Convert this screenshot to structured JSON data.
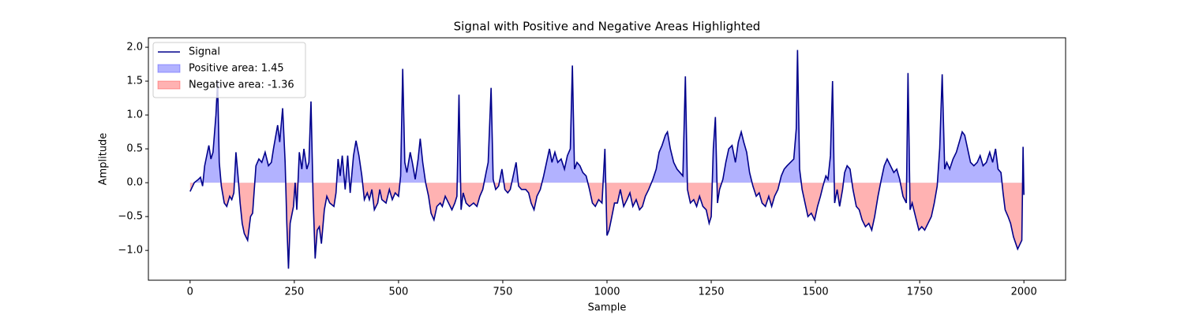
{
  "chart_data": {
    "type": "line",
    "title": "Signal with Positive and Negative Areas Highlighted",
    "x_label": "Sample",
    "y_label": "Amplitude",
    "x": [
      0,
      10,
      20,
      25,
      30,
      35,
      45,
      50,
      55,
      62,
      66,
      70,
      75,
      82,
      88,
      95,
      100,
      105,
      110,
      115,
      120,
      125,
      130,
      138,
      145,
      150,
      158,
      165,
      172,
      180,
      188,
      195,
      200,
      210,
      215,
      222,
      228,
      232,
      236,
      240,
      248,
      252,
      256,
      262,
      268,
      273,
      280,
      285,
      290,
      295,
      300,
      305,
      310,
      315,
      322,
      328,
      335,
      345,
      350,
      355,
      360,
      365,
      372,
      378,
      384,
      392,
      398,
      405,
      412,
      418,
      425,
      430,
      436,
      442,
      450,
      455,
      460,
      470,
      478,
      485,
      492,
      500,
      505,
      510,
      515,
      520,
      528,
      533,
      540,
      547,
      552,
      558,
      565,
      572,
      578,
      585,
      592,
      600,
      605,
      612,
      620,
      628,
      635,
      640,
      645,
      650,
      655,
      662,
      670,
      680,
      688,
      695,
      702,
      710,
      715,
      722,
      727,
      733,
      740,
      748,
      755,
      762,
      768,
      775,
      782,
      788,
      795,
      805,
      812,
      818,
      825,
      832,
      840,
      848,
      855,
      862,
      868,
      875,
      882,
      890,
      898,
      905,
      912,
      917,
      922,
      928,
      935,
      942,
      950,
      958,
      965,
      972,
      980,
      988,
      995,
      1000,
      1005,
      1010,
      1018,
      1025,
      1032,
      1040,
      1048,
      1055,
      1062,
      1070,
      1078,
      1085,
      1092,
      1100,
      1110,
      1118,
      1125,
      1132,
      1140,
      1145,
      1152,
      1160,
      1168,
      1175,
      1182,
      1188,
      1193,
      1200,
      1208,
      1215,
      1222,
      1230,
      1238,
      1245,
      1250,
      1255,
      1260,
      1265,
      1270,
      1278,
      1285,
      1292,
      1300,
      1308,
      1315,
      1322,
      1328,
      1335,
      1342,
      1350,
      1358,
      1365,
      1372,
      1380,
      1388,
      1395,
      1402,
      1410,
      1418,
      1425,
      1432,
      1440,
      1448,
      1454,
      1457,
      1462,
      1468,
      1475,
      1482,
      1490,
      1498,
      1505,
      1512,
      1518,
      1525,
      1530,
      1536,
      1541,
      1546,
      1552,
      1558,
      1565,
      1570,
      1576,
      1583,
      1590,
      1598,
      1605,
      1612,
      1620,
      1628,
      1635,
      1642,
      1650,
      1658,
      1665,
      1672,
      1680,
      1688,
      1695,
      1702,
      1710,
      1718,
      1722,
      1727,
      1732,
      1740,
      1748,
      1755,
      1762,
      1770,
      1778,
      1785,
      1792,
      1798,
      1804,
      1810,
      1815,
      1822,
      1830,
      1838,
      1845,
      1852,
      1858,
      1865,
      1872,
      1880,
      1888,
      1895,
      1902,
      1910,
      1918,
      1925,
      1932,
      1938,
      1945,
      1950,
      1955,
      1962,
      1968,
      1975,
      1985,
      1995,
      1998,
      2000
    ],
    "series": [
      {
        "name": "Signal",
        "color": "#00008b",
        "values": [
          -0.13,
          0.0,
          0.05,
          0.08,
          -0.05,
          0.25,
          0.55,
          0.35,
          0.45,
          1.0,
          1.5,
          0.3,
          -0.05,
          -0.3,
          -0.35,
          -0.2,
          -0.25,
          -0.15,
          0.45,
          0.1,
          -0.3,
          -0.6,
          -0.75,
          -0.85,
          -0.5,
          -0.45,
          0.25,
          0.35,
          0.3,
          0.45,
          0.25,
          0.3,
          0.5,
          0.85,
          0.6,
          1.1,
          0.3,
          -0.6,
          -1.27,
          -0.6,
          -0.35,
          0.0,
          -0.4,
          0.45,
          0.2,
          0.5,
          0.2,
          0.3,
          1.2,
          -0.2,
          -1.12,
          -0.7,
          -0.65,
          -0.9,
          -0.4,
          -0.2,
          -0.3,
          -0.35,
          -0.15,
          0.35,
          0.1,
          0.4,
          -0.1,
          0.4,
          -0.15,
          0.4,
          0.62,
          0.4,
          0.1,
          -0.25,
          -0.15,
          -0.25,
          -0.1,
          -0.4,
          -0.3,
          -0.1,
          -0.25,
          -0.3,
          -0.1,
          -0.25,
          -0.15,
          -0.2,
          0.1,
          1.68,
          0.3,
          0.15,
          0.45,
          0.3,
          0.05,
          0.35,
          0.65,
          0.3,
          0.0,
          -0.2,
          -0.45,
          -0.55,
          -0.35,
          -0.3,
          -0.35,
          -0.2,
          -0.3,
          -0.4,
          -0.3,
          -0.2,
          1.3,
          -0.4,
          -0.15,
          -0.3,
          -0.35,
          -0.3,
          -0.35,
          -0.2,
          -0.1,
          0.15,
          0.3,
          1.4,
          0.05,
          -0.1,
          -0.05,
          0.2,
          -0.1,
          -0.15,
          -0.1,
          0.1,
          0.3,
          -0.05,
          -0.1,
          -0.1,
          -0.15,
          -0.3,
          -0.4,
          -0.2,
          -0.1,
          0.1,
          0.3,
          0.5,
          0.3,
          0.45,
          0.3,
          0.35,
          0.2,
          0.4,
          0.5,
          1.73,
          0.2,
          0.3,
          0.25,
          0.15,
          0.1,
          -0.1,
          -0.3,
          -0.35,
          -0.25,
          -0.3,
          0.5,
          -0.78,
          -0.7,
          -0.55,
          -0.3,
          -0.3,
          -0.1,
          -0.35,
          -0.25,
          -0.15,
          -0.35,
          -0.25,
          -0.4,
          -0.35,
          -0.2,
          -0.1,
          0.05,
          0.2,
          0.45,
          0.55,
          0.7,
          0.75,
          0.5,
          0.3,
          0.2,
          0.15,
          0.1,
          1.57,
          -0.1,
          -0.3,
          -0.25,
          -0.35,
          -0.2,
          -0.35,
          -0.4,
          -0.6,
          -0.5,
          0.5,
          0.97,
          -0.3,
          -0.1,
          0.05,
          0.3,
          0.5,
          0.55,
          0.3,
          0.6,
          0.75,
          0.6,
          0.45,
          0.15,
          -0.05,
          -0.2,
          -0.15,
          -0.3,
          -0.35,
          -0.2,
          -0.35,
          -0.2,
          -0.1,
          0.1,
          0.2,
          0.25,
          0.3,
          0.35,
          0.8,
          1.96,
          0.2,
          -0.1,
          -0.3,
          -0.5,
          -0.45,
          -0.55,
          -0.35,
          -0.2,
          -0.05,
          0.1,
          0.05,
          0.4,
          1.5,
          -0.3,
          -0.1,
          -0.35,
          -0.1,
          0.15,
          0.25,
          0.2,
          -0.1,
          -0.35,
          -0.4,
          -0.55,
          -0.65,
          -0.6,
          -0.7,
          -0.5,
          -0.2,
          0.05,
          0.25,
          0.35,
          0.25,
          0.15,
          0.2,
          0.05,
          -0.2,
          -0.3,
          1.62,
          -0.4,
          -0.3,
          -0.5,
          -0.7,
          -0.65,
          -0.7,
          -0.6,
          -0.5,
          -0.3,
          -0.05,
          0.5,
          1.6,
          0.2,
          0.3,
          0.2,
          0.35,
          0.45,
          0.6,
          0.75,
          0.7,
          0.5,
          0.3,
          0.25,
          0.3,
          0.4,
          0.25,
          0.3,
          0.45,
          0.3,
          0.5,
          0.2,
          0.15,
          -0.15,
          -0.4,
          -0.5,
          -0.6,
          -0.8,
          -0.98,
          -0.85,
          0.53,
          -0.18
        ]
      }
    ],
    "fills": [
      {
        "name": "Positive area: 1.45",
        "color": "#0000ff",
        "where": "above"
      },
      {
        "name": "Negative area: -1.36",
        "color": "#ff0000",
        "where": "below"
      }
    ],
    "xlim": [
      -100,
      2100
    ],
    "ylim": [
      -1.44,
      2.14
    ],
    "xticks": [
      0,
      250,
      500,
      750,
      1000,
      1250,
      1500,
      1750,
      2000
    ],
    "yticks": [
      {
        "value": -1,
        "label": "−1.0"
      },
      {
        "value": -0.5,
        "label": "−0.5"
      },
      {
        "value": 0,
        "label": "0.0"
      },
      {
        "value": 0.5,
        "label": "0.5"
      },
      {
        "value": 1,
        "label": "1.0"
      },
      {
        "value": 1.5,
        "label": "1.5"
      },
      {
        "value": 2,
        "label": "2.0"
      }
    ],
    "legend": "upper left"
  }
}
